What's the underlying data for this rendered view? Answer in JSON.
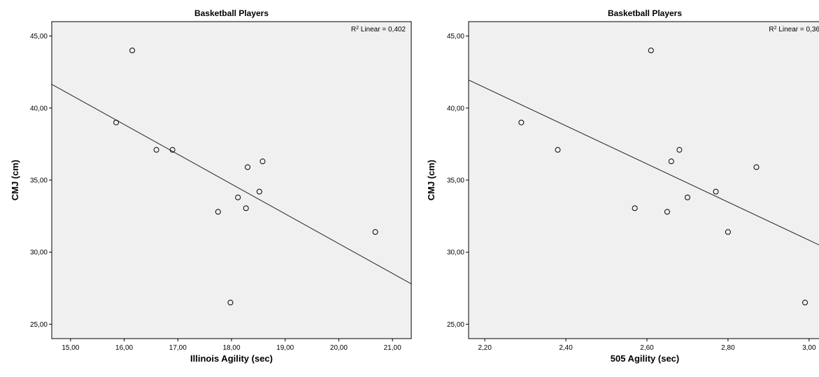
{
  "chart_data": [
    {
      "type": "scatter",
      "title": "Basketball Players",
      "xlabel": "Illinois Agility (sec)",
      "ylabel": "CMJ (cm)",
      "xlim": [
        14.65,
        21.35
      ],
      "ylim": [
        24.0,
        46.0
      ],
      "xticks": [
        "15,00",
        "16,00",
        "17,00",
        "18,00",
        "19,00",
        "20,00",
        "21,00"
      ],
      "yticks": [
        "25,00",
        "30,00",
        "35,00",
        "40,00",
        "45,00"
      ],
      "annotation": {
        "prefix": "R",
        "sup": "2",
        "text": " Linear = 0,402"
      },
      "grid": false,
      "fit_line": {
        "start": [
          14.65,
          41.65
        ],
        "end": [
          21.35,
          27.8
        ]
      },
      "points": [
        {
          "x": 15.85,
          "y": 39.0
        },
        {
          "x": 16.15,
          "y": 44.0
        },
        {
          "x": 16.6,
          "y": 37.1
        },
        {
          "x": 16.9,
          "y": 37.1
        },
        {
          "x": 17.75,
          "y": 32.8
        },
        {
          "x": 17.98,
          "y": 26.5
        },
        {
          "x": 18.12,
          "y": 33.8
        },
        {
          "x": 18.27,
          "y": 33.05
        },
        {
          "x": 18.3,
          "y": 35.9
        },
        {
          "x": 18.52,
          "y": 34.2
        },
        {
          "x": 18.58,
          "y": 36.3
        },
        {
          "x": 20.68,
          "y": 31.4
        }
      ]
    },
    {
      "type": "scatter",
      "title": "Basketball Players",
      "xlabel": "505 Agility (sec)",
      "ylabel": "CMJ (cm)",
      "xlim": [
        2.16,
        3.04
      ],
      "ylim": [
        24.0,
        46.0
      ],
      "xticks": [
        "2,20",
        "2,40",
        "2,60",
        "2,80",
        "3,00"
      ],
      "yticks": [
        "25,00",
        "30,00",
        "35,00",
        "40,00",
        "45,00"
      ],
      "annotation": {
        "prefix": "R",
        "sup": "2",
        "text": " Linear = 0,36"
      },
      "grid": false,
      "fit_line": {
        "start": [
          2.16,
          41.95
        ],
        "end": [
          3.04,
          30.3
        ]
      },
      "points": [
        {
          "x": 2.29,
          "y": 39.0
        },
        {
          "x": 2.38,
          "y": 37.1
        },
        {
          "x": 2.57,
          "y": 33.05
        },
        {
          "x": 2.61,
          "y": 44.0
        },
        {
          "x": 2.65,
          "y": 32.8
        },
        {
          "x": 2.66,
          "y": 36.3
        },
        {
          "x": 2.68,
          "y": 37.1
        },
        {
          "x": 2.7,
          "y": 33.8
        },
        {
          "x": 2.77,
          "y": 34.2
        },
        {
          "x": 2.8,
          "y": 31.4
        },
        {
          "x": 2.87,
          "y": 35.9
        },
        {
          "x": 2.99,
          "y": 26.5
        }
      ]
    }
  ]
}
